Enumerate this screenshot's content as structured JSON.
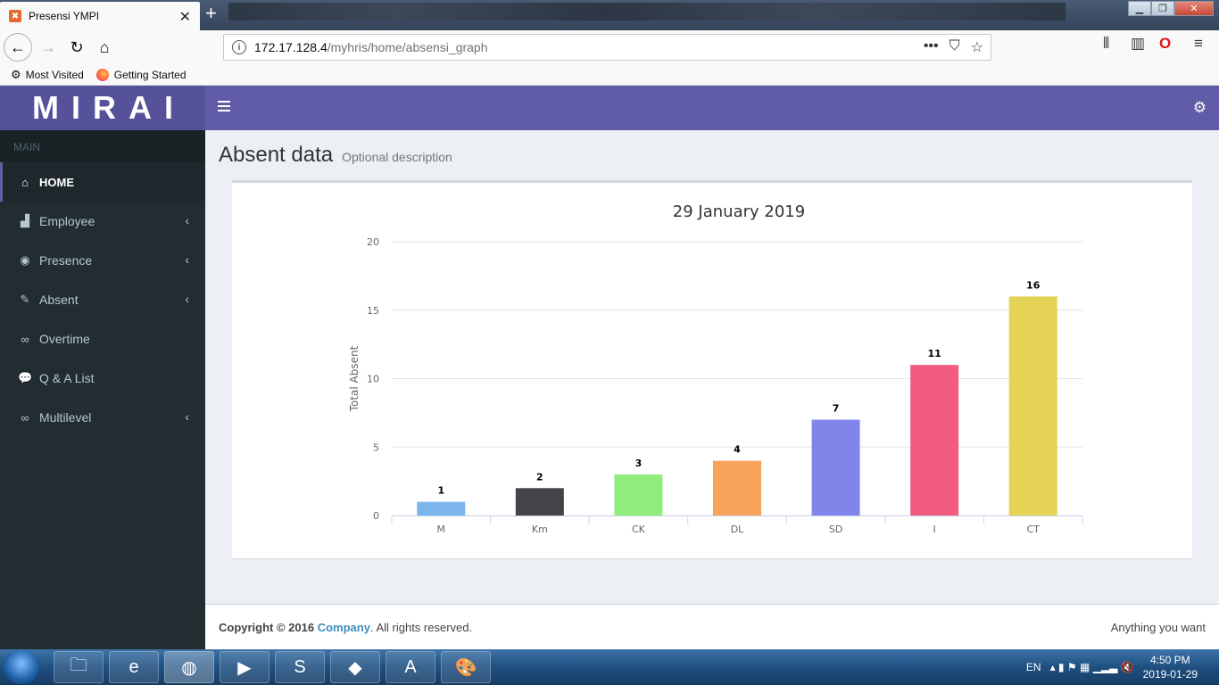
{
  "browser": {
    "tab_title": "Presensi YMPI",
    "url_host": "172.17.128.4",
    "url_path": "/myhris/home/absensi_graph",
    "bookmarks": [
      "Most Visited",
      "Getting Started"
    ]
  },
  "app": {
    "logo": "MIRAI",
    "accent_color": "#605ca8"
  },
  "sidebar": {
    "header": "MAIN",
    "items": [
      {
        "label": "HOME",
        "icon": "home-icon",
        "active": true
      },
      {
        "label": "Employee",
        "icon": "area-chart-icon",
        "has_children": true
      },
      {
        "label": "Presence",
        "icon": "eye-icon",
        "has_children": true
      },
      {
        "label": "Absent",
        "icon": "edit-icon",
        "has_children": true
      },
      {
        "label": "Overtime",
        "icon": "link-icon"
      },
      {
        "label": "Q & A List",
        "icon": "comments-icon"
      },
      {
        "label": "Multilevel",
        "icon": "link-icon",
        "has_children": true
      }
    ]
  },
  "page": {
    "title": "Absent data",
    "description": "Optional description"
  },
  "chart_data": {
    "type": "bar",
    "title": "29 January 2019",
    "xlabel": "",
    "ylabel": "Total Absent",
    "categories": [
      "M",
      "Km",
      "CK",
      "DL",
      "SD",
      "I",
      "CT"
    ],
    "values": [
      1,
      2,
      3,
      4,
      7,
      11,
      16
    ],
    "colors": [
      "#7cb5ec",
      "#434348",
      "#90ed7d",
      "#f7a35c",
      "#8085e9",
      "#f15c80",
      "#e4d354"
    ],
    "ylim": [
      0,
      20
    ],
    "yticks": [
      0,
      5,
      10,
      15,
      20
    ],
    "grid": true,
    "data_labels": true
  },
  "footer": {
    "copyright_prefix": "Copyright © 2016 ",
    "company": "Company",
    "copyright_suffix": ". All rights reserved.",
    "right_text": "Anything you want"
  },
  "taskbar": {
    "language": "EN",
    "time": "4:50 PM",
    "date": "2019-01-29"
  }
}
